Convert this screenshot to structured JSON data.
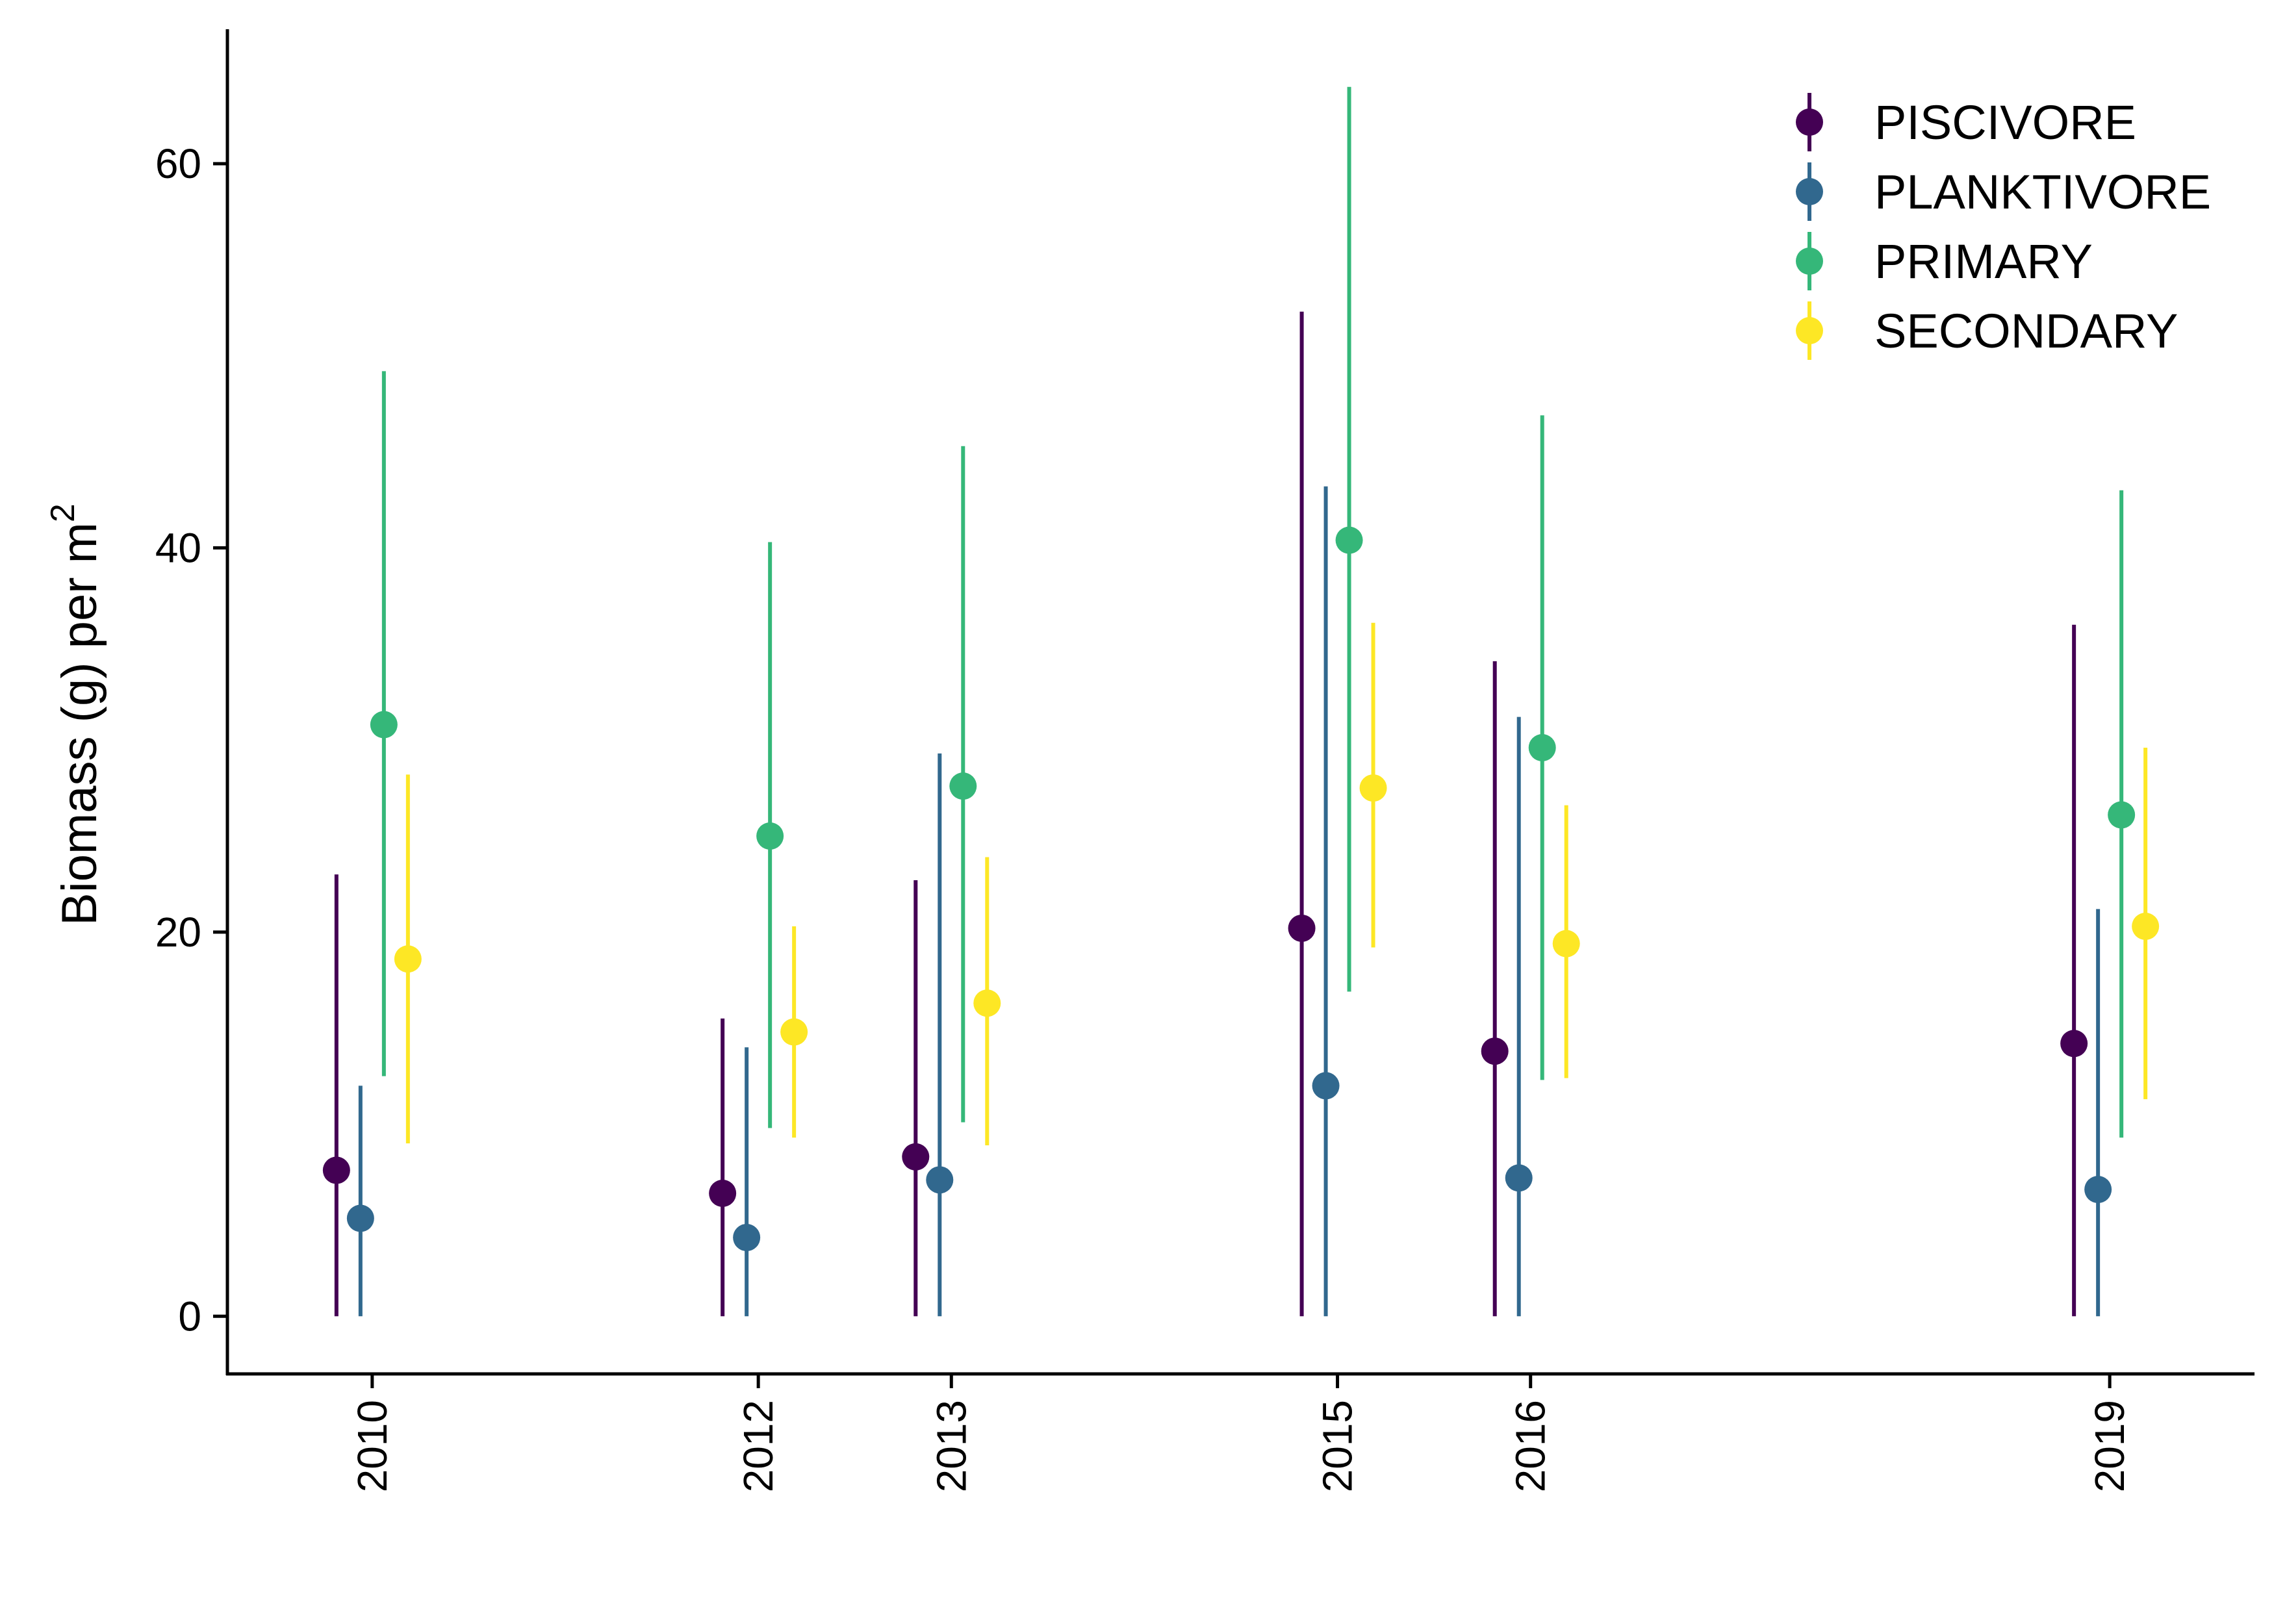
{
  "chart_data": {
    "type": "scatter",
    "xlabel": "",
    "ylabel": "Biomass (g) per  m",
    "ylabel_superscript": "2",
    "x_ticks": [
      "2010",
      "2012",
      "2013",
      "2015",
      "2016",
      "2019"
    ],
    "y_ticks": [
      "0",
      "20",
      "40",
      "60"
    ],
    "ylim": [
      -3,
      67
    ],
    "xlim": [
      2009.25,
      2019.75
    ],
    "grid": false,
    "legend_position": "top-right",
    "series": [
      {
        "name": "PISCIVORE",
        "color": "#440154",
        "points": [
          {
            "year": 2010,
            "mean": 7.6,
            "low": 0,
            "high": 23.0
          },
          {
            "year": 2012,
            "mean": 6.4,
            "low": 0,
            "high": 15.5
          },
          {
            "year": 2013,
            "mean": 8.3,
            "low": 0,
            "high": 22.7
          },
          {
            "year": 2015,
            "mean": 20.2,
            "low": 0,
            "high": 52.3
          },
          {
            "year": 2016,
            "mean": 13.8,
            "low": 0,
            "high": 34.1
          },
          {
            "year": 2019,
            "mean": 14.2,
            "low": 0,
            "high": 36.0
          }
        ]
      },
      {
        "name": "PLANKTIVORE",
        "color": "#31688E",
        "points": [
          {
            "year": 2010,
            "mean": 5.1,
            "low": 0,
            "high": 12.0
          },
          {
            "year": 2012,
            "mean": 4.1,
            "low": 0,
            "high": 14.0
          },
          {
            "year": 2013,
            "mean": 7.1,
            "low": 0,
            "high": 29.3
          },
          {
            "year": 2015,
            "mean": 12.0,
            "low": 0,
            "high": 43.2
          },
          {
            "year": 2016,
            "mean": 7.2,
            "low": 0,
            "high": 31.2
          },
          {
            "year": 2019,
            "mean": 6.6,
            "low": 0,
            "high": 21.2
          }
        ]
      },
      {
        "name": "PRIMARY",
        "color": "#35B779",
        "points": [
          {
            "year": 2010,
            "mean": 30.8,
            "low": 12.5,
            "high": 49.2
          },
          {
            "year": 2012,
            "mean": 25.0,
            "low": 9.8,
            "high": 40.3
          },
          {
            "year": 2013,
            "mean": 27.6,
            "low": 10.1,
            "high": 45.3
          },
          {
            "year": 2015,
            "mean": 40.4,
            "low": 16.9,
            "high": 64.0
          },
          {
            "year": 2016,
            "mean": 29.6,
            "low": 12.3,
            "high": 46.9
          },
          {
            "year": 2019,
            "mean": 26.1,
            "low": 9.3,
            "high": 43.0
          }
        ]
      },
      {
        "name": "SECONDARY",
        "color": "#FDE725",
        "points": [
          {
            "year": 2010,
            "mean": 18.6,
            "low": 9.0,
            "high": 28.2
          },
          {
            "year": 2012,
            "mean": 14.8,
            "low": 9.3,
            "high": 20.3
          },
          {
            "year": 2013,
            "mean": 16.3,
            "low": 8.9,
            "high": 23.9
          },
          {
            "year": 2015,
            "mean": 27.5,
            "low": 19.2,
            "high": 36.1
          },
          {
            "year": 2016,
            "mean": 19.4,
            "low": 12.4,
            "high": 26.6
          },
          {
            "year": 2019,
            "mean": 20.3,
            "low": 11.3,
            "high": 29.6
          }
        ]
      }
    ]
  }
}
